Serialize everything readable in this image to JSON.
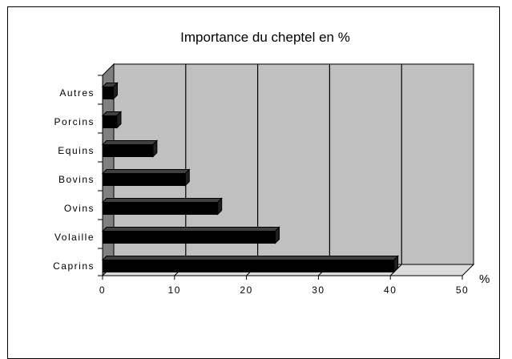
{
  "chart_data": {
    "type": "bar",
    "orientation": "horizontal",
    "style": "3d",
    "title": "Importance du cheptel en %",
    "x_unit_label": "%",
    "categories": [
      "Autres",
      "Porcins",
      "Equins",
      "Bovins",
      "Ovins",
      "Volaille",
      "Caprins"
    ],
    "values": [
      1.5,
      2,
      7,
      11.5,
      16,
      24,
      40.5
    ],
    "xlim": [
      0,
      50
    ],
    "x_ticks": [
      "0",
      "10",
      "20",
      "30",
      "40",
      "50"
    ],
    "grid": true,
    "legend": false,
    "colors": {
      "plot_background": "#c0c0c0",
      "side_wall": "#808080",
      "floor": "#dcdcdc",
      "bar": "#000000",
      "gridline": "#000000"
    }
  }
}
